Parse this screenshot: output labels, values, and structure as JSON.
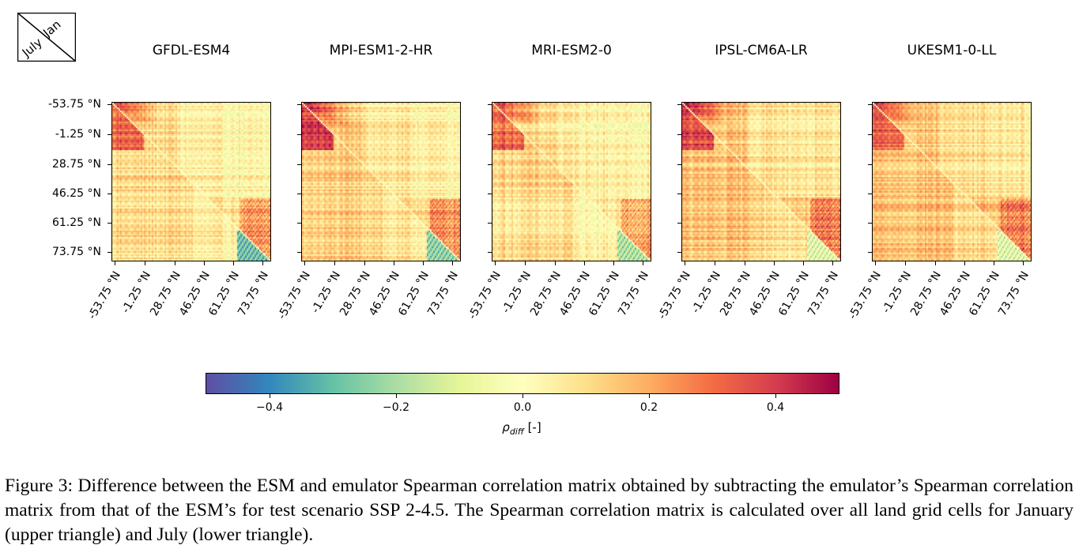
{
  "legend": {
    "upper": "Jan",
    "lower": "July"
  },
  "models": [
    "GFDL-ESM4",
    "MPI-ESM1-2-HR",
    "MRI-ESM2-0",
    "IPSL-CM6A-LR",
    "UKESM1-0-LL"
  ],
  "tick_labels": [
    "-53.75 °N",
    "-1.25 °N",
    "28.75 °N",
    "46.25 °N",
    "61.25 °N",
    "73.75 °N"
  ],
  "colorbar": {
    "ticks": [
      "−0.4",
      "−0.2",
      "0.0",
      "0.2",
      "0.4"
    ],
    "label_main": "ρ",
    "label_sub": "diff",
    "label_unit": " [-]",
    "range": [
      -0.5,
      0.5
    ],
    "colormap": "Spectral_r"
  },
  "caption": "Figure 3: Difference between the ESM and emulator Spearman correlation matrix obtained by subtracting the emulator’s Spearman correlation matrix from that of the ESM’s for test scenario SSP 2-4.5. The Spearman correlation matrix is calculated over all land grid cells for January (upper triangle) and July (lower triangle).",
  "chart_data": [
    {
      "type": "heatmap",
      "title": "GFDL-ESM4",
      "xticks": [
        "-53.75 °N",
        "-1.25 °N",
        "28.75 °N",
        "46.25 °N",
        "61.25 °N",
        "73.75 °N"
      ],
      "yticks": [
        "-53.75 °N",
        "-1.25 °N",
        "28.75 °N",
        "46.25 °N",
        "61.25 °N",
        "73.75 °N"
      ],
      "upper_triangle": "Jan",
      "lower_triangle": "July",
      "vmin": -0.5,
      "vmax": 0.5,
      "typical_value": 0.1,
      "peak_value": 0.4,
      "min_value": -0.45
    },
    {
      "type": "heatmap",
      "title": "MPI-ESM1-2-HR",
      "xticks": [
        "-53.75 °N",
        "-1.25 °N",
        "28.75 °N",
        "46.25 °N",
        "61.25 °N",
        "73.75 °N"
      ],
      "yticks": [
        "-53.75 °N",
        "-1.25 °N",
        "28.75 °N",
        "46.25 °N",
        "61.25 °N",
        "73.75 °N"
      ],
      "upper_triangle": "Jan",
      "lower_triangle": "July",
      "vmin": -0.5,
      "vmax": 0.5,
      "typical_value": 0.12,
      "peak_value": 0.5,
      "min_value": -0.4
    },
    {
      "type": "heatmap",
      "title": "MRI-ESM2-0",
      "xticks": [
        "-53.75 °N",
        "-1.25 °N",
        "28.75 °N",
        "46.25 °N",
        "61.25 °N",
        "73.75 °N"
      ],
      "yticks": [
        "-53.75 °N",
        "-1.25 °N",
        "28.75 °N",
        "46.25 °N",
        "61.25 °N",
        "73.75 °N"
      ],
      "upper_triangle": "Jan",
      "lower_triangle": "July",
      "vmin": -0.5,
      "vmax": 0.5,
      "typical_value": 0.1,
      "peak_value": 0.4,
      "min_value": -0.35
    },
    {
      "type": "heatmap",
      "title": "IPSL-CM6A-LR",
      "xticks": [
        "-53.75 °N",
        "-1.25 °N",
        "28.75 °N",
        "46.25 °N",
        "61.25 °N",
        "73.75 °N"
      ],
      "yticks": [
        "-53.75 °N",
        "-1.25 °N",
        "28.75 °N",
        "46.25 °N",
        "61.25 °N",
        "73.75 °N"
      ],
      "upper_triangle": "Jan",
      "lower_triangle": "July",
      "vmin": -0.5,
      "vmax": 0.5,
      "typical_value": 0.14,
      "peak_value": 0.45,
      "min_value": -0.25
    },
    {
      "type": "heatmap",
      "title": "UKESM1-0-LL",
      "xticks": [
        "-53.75 °N",
        "-1.25 °N",
        "28.75 °N",
        "46.25 °N",
        "61.25 °N",
        "73.75 °N"
      ],
      "yticks": [
        "-53.75 °N",
        "-1.25 °N",
        "28.75 °N",
        "46.25 °N",
        "61.25 °N",
        "73.75 °N"
      ],
      "upper_triangle": "Jan",
      "lower_triangle": "July",
      "vmin": -0.5,
      "vmax": 0.5,
      "typical_value": 0.15,
      "peak_value": 0.4,
      "min_value": -0.25
    }
  ]
}
